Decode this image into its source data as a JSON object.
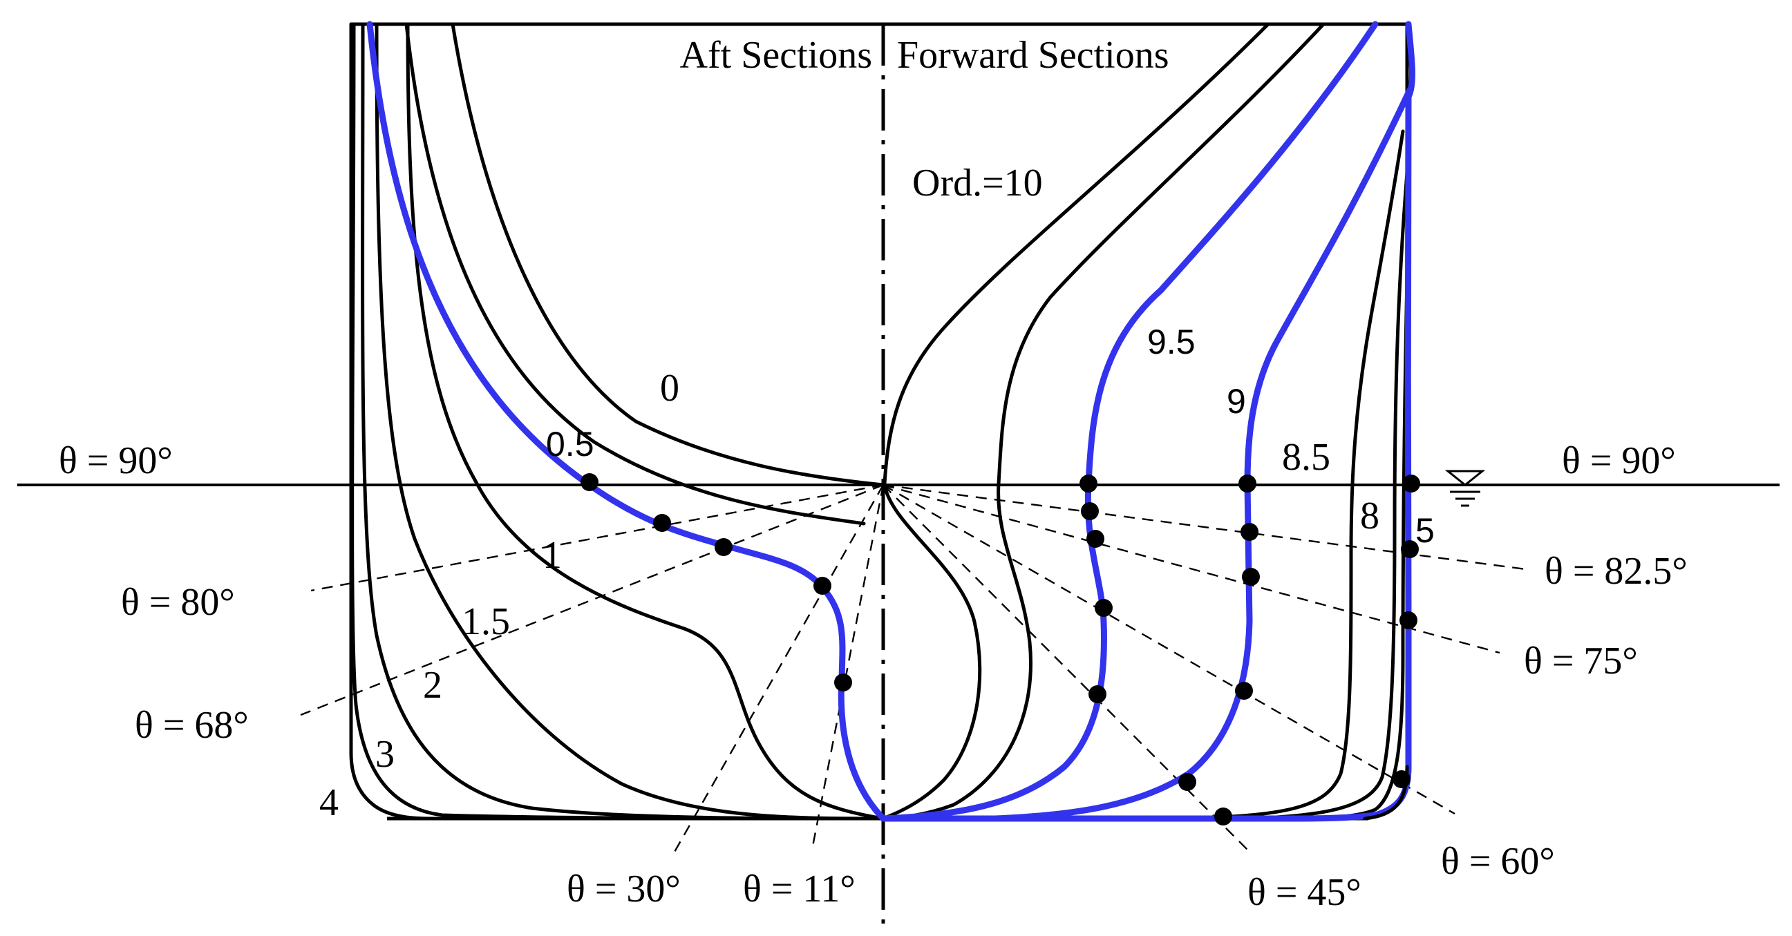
{
  "header": {
    "aft_label": "Aft Sections",
    "forward_label": "Forward Sections",
    "ordinate_label": "Ord.=10"
  },
  "section_labels": {
    "s0": "0",
    "s05": "0.5",
    "s1": "1",
    "s15": "1.5",
    "s2": "2",
    "s3": "3",
    "s4": "4",
    "s5": "5",
    "s8": "8",
    "s85": "8.5",
    "s9": "9",
    "s95": "9.5"
  },
  "angle_labels": {
    "left_90": "θ = 90°",
    "right_90": "θ = 90°",
    "a80": "θ = 80°",
    "a68": "θ = 68°",
    "a30": "θ = 30°",
    "a11": "θ = 11°",
    "a825": "θ = 82.5°",
    "a75": "θ = 75°",
    "a60": "θ = 60°",
    "a45": "θ = 45°"
  },
  "colors": {
    "highlight": "#3333ee",
    "line": "#000000",
    "background": "#ffffff"
  },
  "icons": {
    "waterline_marker": "waterline-symbol-icon"
  }
}
